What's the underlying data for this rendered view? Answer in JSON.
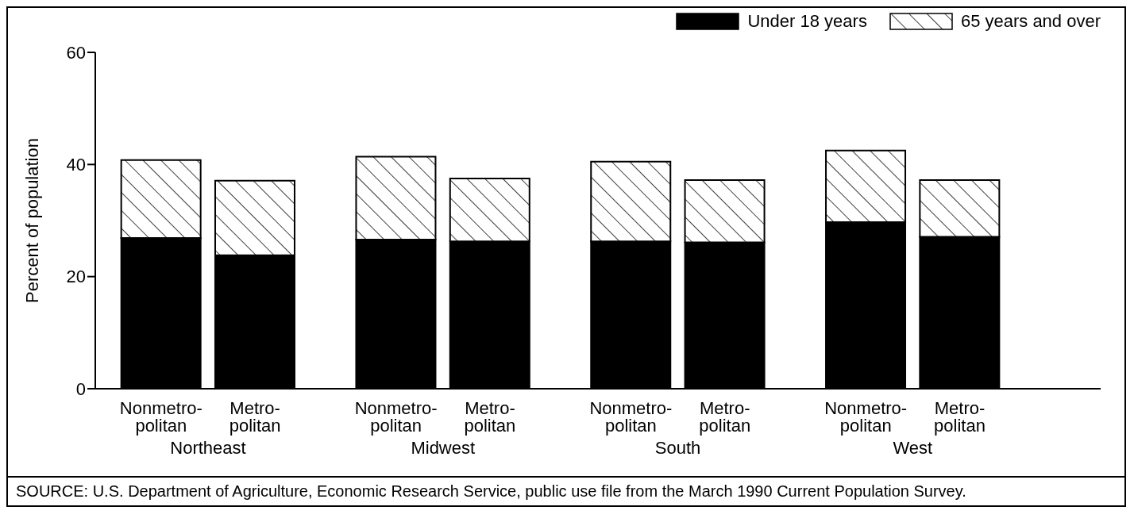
{
  "chart_data": {
    "type": "bar",
    "stacked": true,
    "ylabel": "Percent of population",
    "categories": [
      "Nonmetro-\npolitan",
      "Metro-\npolitan",
      "Nonmetro-\npolitan",
      "Metro-\npolitan",
      "Nonmetro-\npolitan",
      "Metro-\npolitan",
      "Nonmetro-\npolitan",
      "Metro-\npolitan"
    ],
    "series": [
      {
        "name": "Under 18 years",
        "color": "#000000",
        "values": [
          26.9,
          23.8,
          26.6,
          26.3,
          26.3,
          26.1,
          29.7,
          27.1
        ]
      },
      {
        "name": "65 years and over",
        "color": "#000000",
        "values": [
          13.9,
          13.3,
          14.8,
          11.2,
          14.2,
          11.1,
          12.8,
          10.1
        ]
      }
    ],
    "ylim": [
      0,
      60
    ],
    "yticks": [
      0,
      20,
      40,
      60
    ],
    "grid": false,
    "legend": "top right",
    "annotations": [
      "Northeast",
      "Midwest",
      "South",
      "West",
      "SOURCE:  U.S. Department of Agriculture, Economic Research Service, public use file from the March 1990 Current Population Survey."
    ]
  }
}
